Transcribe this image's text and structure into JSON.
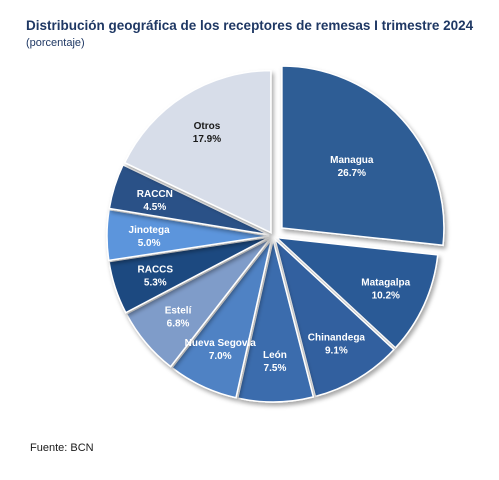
{
  "title": "Distribución geográfica de los receptores de remesas I trimestre 2024",
  "subtitle": "(porcentaje)",
  "source": "Fuente: BCN",
  "chart_data": {
    "type": "pie",
    "value_suffix": "%",
    "slices": [
      {
        "label": "Managua",
        "value": 26.7,
        "display": "26.7%",
        "color": "#2f5d95",
        "text_color": "#ffffff"
      },
      {
        "label": "Matagalpa",
        "value": 10.2,
        "display": "10.2%",
        "color": "#2a5a96",
        "text_color": "#ffffff"
      },
      {
        "label": "Chinandega",
        "value": 9.1,
        "display": "9.1%",
        "color": "#30609f",
        "text_color": "#ffffff"
      },
      {
        "label": "León",
        "value": 7.5,
        "display": "7.5%",
        "color": "#3a6cad",
        "text_color": "#ffffff"
      },
      {
        "label": "Nueva Segovia",
        "value": 7.0,
        "display": "7.0%",
        "color": "#5082c4",
        "text_color": "#ffffff"
      },
      {
        "label": "Estelí",
        "value": 6.8,
        "display": "6.8%",
        "color": "#7f9cc9",
        "text_color": "#ffffff"
      },
      {
        "label": "RACCS",
        "value": 5.3,
        "display": "5.3%",
        "color": "#1f4880",
        "text_color": "#ffffff"
      },
      {
        "label": "Jinotega",
        "value": 5.0,
        "display": "5.0%",
        "color": "#5b95dc",
        "text_color": "#ffffff"
      },
      {
        "label": "RACCN",
        "value": 4.5,
        "display": "4.5%",
        "color": "#2b5187",
        "text_color": "#ffffff"
      },
      {
        "label": "Otros",
        "value": 17.9,
        "display": "17.9%",
        "color": "#d7dde9",
        "text_color": "#1a1a1a"
      }
    ]
  }
}
